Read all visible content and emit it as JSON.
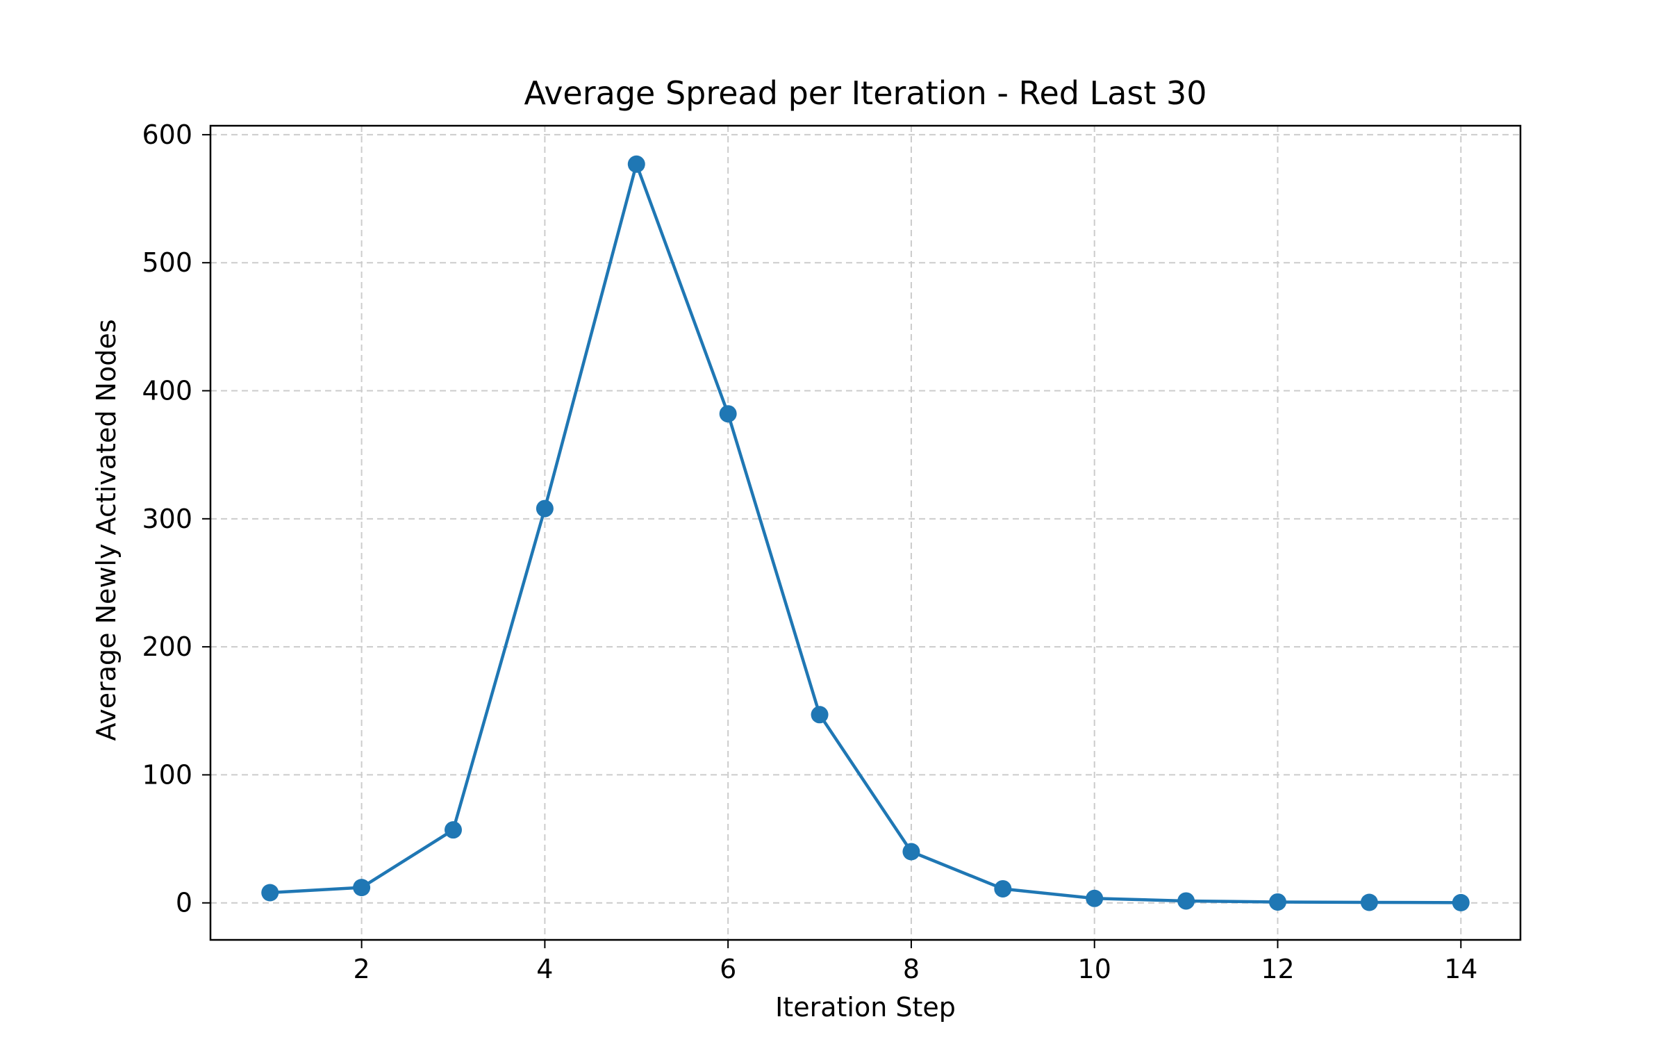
{
  "chart_data": {
    "type": "line",
    "title": "Average Spread per Iteration - Red Last 30",
    "xlabel": "Iteration Step",
    "ylabel": "Average Newly Activated Nodes",
    "xlim": [
      0.35,
      14.65
    ],
    "ylim": [
      -28.9,
      607
    ],
    "xticks": [
      2,
      4,
      6,
      8,
      10,
      12,
      14
    ],
    "yticks": [
      0,
      100,
      200,
      300,
      400,
      500,
      600
    ],
    "grid": true,
    "series": [
      {
        "color": "#1f77b4",
        "x": [
          1,
          2,
          3,
          4,
          5,
          6,
          7,
          8,
          9,
          10,
          11,
          12,
          13,
          14
        ],
        "y": [
          8,
          12,
          57,
          308,
          577,
          382,
          147,
          40,
          11,
          3.5,
          1.5,
          0.7,
          0.4,
          0.2
        ]
      }
    ]
  }
}
